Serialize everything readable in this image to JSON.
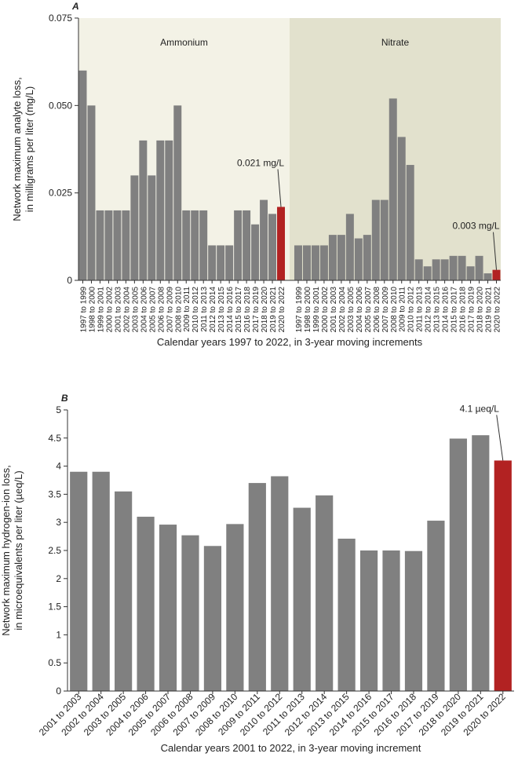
{
  "chart_data": [
    {
      "type": "bar",
      "panel": "A",
      "y_label": [
        "Network maximum analyte loss,",
        "in milligrams per liter (mg/L)"
      ],
      "x_label": "Calendar years 1997 to 2022, in 3-year moving increments",
      "categories": [
        "1997 to 1999",
        "1998 to 2000",
        "1999 to 2001",
        "2000 to 2002",
        "2001 to 2003",
        "2002 to 2004",
        "2003 to 2005",
        "2004 to 2006",
        "2005 to 2007",
        "2006 to 2008",
        "2007 to 2009",
        "2008 to 2010",
        "2009 to 2011",
        "2010 to 2012",
        "2011 to 2013",
        "2012 to 2014",
        "2013 to 2015",
        "2014 to 2016",
        "2015 to 2017",
        "2016 to 2018",
        "2017 to 2019",
        "2018 to 2020",
        "2019 to 2021",
        "2020 to 2022"
      ],
      "series": [
        {
          "name": "Ammonium",
          "color": "#808080",
          "highlight_color": "#b22222",
          "background": "#f3f2e6",
          "annotation": "0.021 mg/L",
          "values": [
            0.06,
            0.05,
            0.02,
            0.02,
            0.02,
            0.02,
            0.03,
            0.04,
            0.03,
            0.04,
            0.04,
            0.05,
            0.02,
            0.02,
            0.02,
            0.01,
            0.01,
            0.01,
            0.02,
            0.02,
            0.016,
            0.023,
            0.019,
            0.021
          ]
        },
        {
          "name": "Nitrate",
          "color": "#808080",
          "highlight_color": "#b22222",
          "background": "#e2e1cd",
          "annotation": "0.003 mg/L",
          "values": [
            0.01,
            0.01,
            0.01,
            0.01,
            0.013,
            0.013,
            0.019,
            0.012,
            0.013,
            0.023,
            0.023,
            0.052,
            0.041,
            0.033,
            0.006,
            0.004,
            0.006,
            0.006,
            0.007,
            0.007,
            0.004,
            0.007,
            0.002,
            0.003
          ]
        }
      ],
      "ylim": [
        0,
        0.075
      ],
      "yticks": [
        0,
        0.025,
        {
          "value": 0.05,
          "label": "0.050"
        },
        0.075
      ]
    },
    {
      "type": "bar",
      "panel": "B",
      "y_label": [
        "Network maximum hydrogen-ion loss,",
        "in microequivalents per liter (µeq/L)"
      ],
      "x_label": "Calendar years 2001 to 2022, in 3-year moving increment",
      "categories": [
        "2001 to 2003",
        "2002 to 2004",
        "2003 to 2005",
        "2004 to 2006",
        "2005 to 2007",
        "2006 to 2008",
        "2007 to 2009",
        "2008 to 2010",
        "2009 to 2011",
        "2010 to 2012",
        "2011 to 2013",
        "2012 to 2014",
        "2013 to 2015",
        "2014 to 2016",
        "2015 to 2017",
        "2016 to 2018",
        "2017 to 2019",
        "2018 to 2020",
        "2019 to 2021",
        "2020 to 2022"
      ],
      "series": [
        {
          "color": "#808080",
          "highlight_color": "#b22222",
          "annotation": "4.1 µeq/L",
          "values": [
            3.9,
            3.9,
            3.55,
            3.1,
            2.96,
            2.77,
            2.58,
            2.97,
            3.7,
            3.82,
            3.26,
            3.48,
            2.71,
            2.5,
            2.5,
            2.49,
            3.03,
            4.49,
            4.55,
            4.1
          ]
        }
      ],
      "ylim": [
        0,
        5
      ],
      "yticks": [
        0,
        0.5,
        1,
        1.5,
        2,
        2.5,
        3,
        3.5,
        4,
        4.5,
        5
      ]
    }
  ]
}
